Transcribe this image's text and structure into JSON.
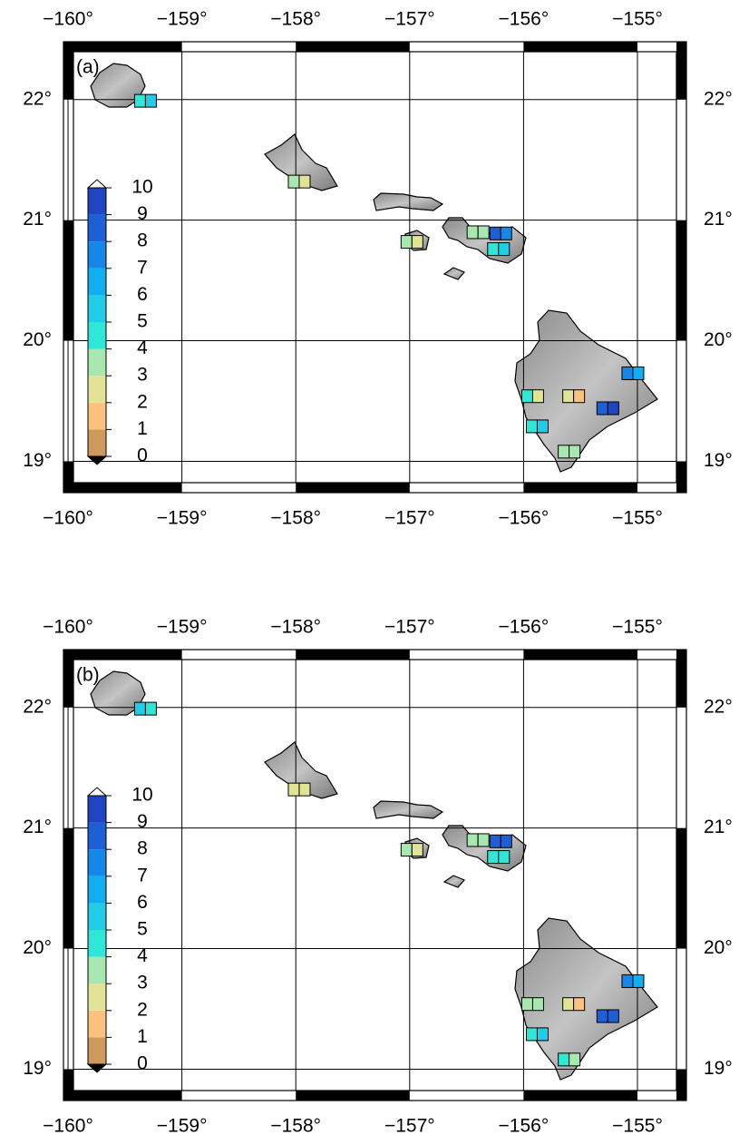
{
  "chart_data": [
    {
      "type": "map",
      "label": "(a)",
      "xlim": [
        -160.04,
        -154.57
      ],
      "ylim": [
        18.74,
        22.48
      ],
      "xticks": [
        {
          "value": -160,
          "label": "−160°"
        },
        {
          "value": -159,
          "label": "−159°"
        },
        {
          "value": -158,
          "label": "−158°"
        },
        {
          "value": -157,
          "label": "−157°"
        },
        {
          "value": -156,
          "label": "−156°"
        },
        {
          "value": -155,
          "label": "−155°"
        }
      ],
      "yticks": [
        {
          "value": 19,
          "label": "19°"
        },
        {
          "value": 20,
          "label": "20°"
        },
        {
          "value": 21,
          "label": "21°"
        },
        {
          "value": 22,
          "label": "22°"
        }
      ],
      "colorbar": {
        "ticks": [
          0,
          1,
          2,
          3,
          4,
          5,
          6,
          7,
          8,
          9,
          10
        ],
        "colors": [
          "#cf9a5c",
          "#fdc27e",
          "#e3e396",
          "#a8e8b0",
          "#30e6d6",
          "#20cce6",
          "#12aef2",
          "#1686e8",
          "#1d5fd6",
          "#1f45c0"
        ],
        "under_color": "#000000",
        "over_color": "#ffffff"
      },
      "stations": [
        {
          "lon": -159.32,
          "lat": 21.99,
          "values": [
            4.5,
            5
          ]
        },
        {
          "lon": -157.97,
          "lat": 21.32,
          "values": [
            3.5,
            2.5
          ]
        },
        {
          "lon": -156.98,
          "lat": 20.82,
          "values": [
            3.5,
            2.5
          ]
        },
        {
          "lon": -156.4,
          "lat": 20.9,
          "values": [
            3.5,
            3.5
          ]
        },
        {
          "lon": -156.2,
          "lat": 20.89,
          "values": [
            8.5,
            7.5
          ]
        },
        {
          "lon": -156.22,
          "lat": 20.76,
          "values": [
            4.5,
            5.5
          ]
        },
        {
          "lon": -155.04,
          "lat": 19.73,
          "values": [
            7.5,
            6.5
          ]
        },
        {
          "lon": -155.92,
          "lat": 19.54,
          "values": [
            4.5,
            2.5
          ]
        },
        {
          "lon": -155.56,
          "lat": 19.54,
          "values": [
            2.5,
            1.5
          ]
        },
        {
          "lon": -155.26,
          "lat": 19.44,
          "values": [
            8.5,
            9.5
          ]
        },
        {
          "lon": -155.88,
          "lat": 19.29,
          "values": [
            4.5,
            5.5
          ]
        },
        {
          "lon": -155.6,
          "lat": 19.08,
          "values": [
            3.5,
            3.5
          ]
        }
      ]
    },
    {
      "type": "map",
      "label": "(b)",
      "xlim": [
        -160.04,
        -154.57
      ],
      "ylim": [
        18.74,
        22.48
      ],
      "xticks": [
        {
          "value": -160,
          "label": "−160°"
        },
        {
          "value": -159,
          "label": "−159°"
        },
        {
          "value": -158,
          "label": "−158°"
        },
        {
          "value": -157,
          "label": "−157°"
        },
        {
          "value": -156,
          "label": "−156°"
        },
        {
          "value": -155,
          "label": "−155°"
        }
      ],
      "yticks": [
        {
          "value": 19,
          "label": "19°"
        },
        {
          "value": 20,
          "label": "20°"
        },
        {
          "value": 21,
          "label": "21°"
        },
        {
          "value": 22,
          "label": "22°"
        }
      ],
      "colorbar": {
        "ticks": [
          0,
          1,
          2,
          3,
          4,
          5,
          6,
          7,
          8,
          9,
          10
        ],
        "colors": [
          "#cf9a5c",
          "#fdc27e",
          "#e3e396",
          "#a8e8b0",
          "#30e6d6",
          "#20cce6",
          "#12aef2",
          "#1686e8",
          "#1d5fd6",
          "#1f45c0"
        ],
        "under_color": "#000000",
        "over_color": "#ffffff"
      },
      "stations": [
        {
          "lon": -159.32,
          "lat": 21.99,
          "values": [
            5,
            4.5
          ]
        },
        {
          "lon": -157.97,
          "lat": 21.32,
          "values": [
            2.5,
            2.5
          ]
        },
        {
          "lon": -156.98,
          "lat": 20.82,
          "values": [
            3.5,
            2.5
          ]
        },
        {
          "lon": -156.4,
          "lat": 20.9,
          "values": [
            3.5,
            3.5
          ]
        },
        {
          "lon": -156.2,
          "lat": 20.89,
          "values": [
            8.5,
            8.5
          ]
        },
        {
          "lon": -156.22,
          "lat": 20.76,
          "values": [
            4.5,
            4.5
          ]
        },
        {
          "lon": -155.04,
          "lat": 19.73,
          "values": [
            7.5,
            6.5
          ]
        },
        {
          "lon": -155.92,
          "lat": 19.54,
          "values": [
            3.5,
            3.5
          ]
        },
        {
          "lon": -155.56,
          "lat": 19.54,
          "values": [
            2.5,
            1.5
          ]
        },
        {
          "lon": -155.26,
          "lat": 19.44,
          "values": [
            8.5,
            8.5
          ]
        },
        {
          "lon": -155.88,
          "lat": 19.29,
          "values": [
            4.5,
            5.5
          ]
        },
        {
          "lon": -155.6,
          "lat": 19.08,
          "values": [
            4.5,
            3.5
          ]
        }
      ]
    }
  ]
}
